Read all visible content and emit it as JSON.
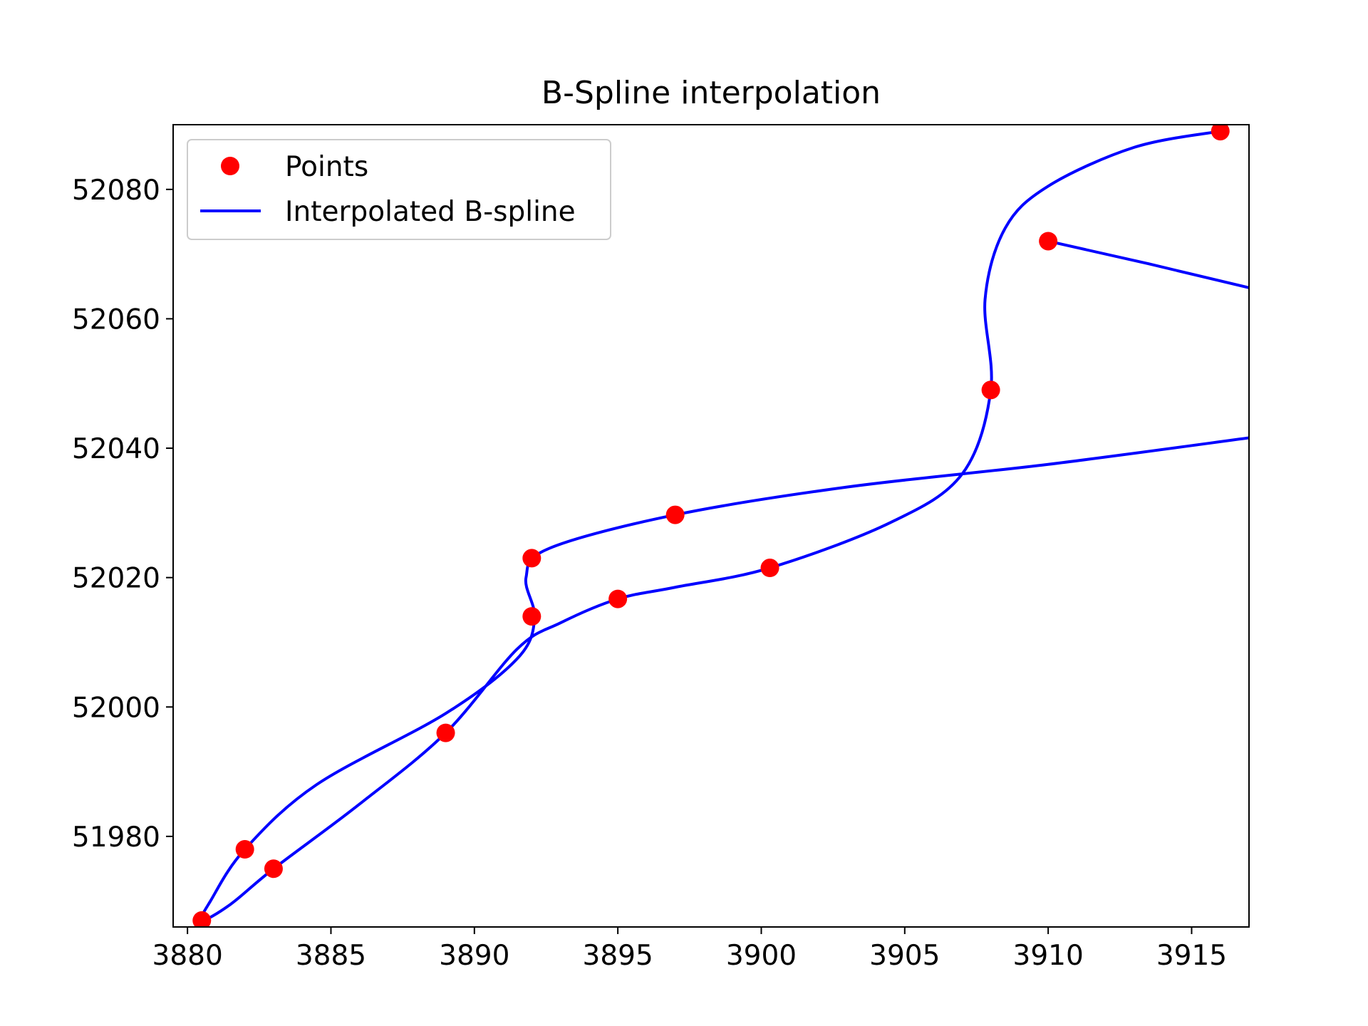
{
  "chart_data": {
    "type": "line",
    "title": "B-Spline interpolation",
    "xlabel": "",
    "ylabel": "",
    "xlim": [
      3879.5,
      3917
    ],
    "ylim": [
      51966,
      52090
    ],
    "xticks": [
      3880,
      3885,
      3890,
      3895,
      3900,
      3905,
      3910,
      3915
    ],
    "yticks": [
      51980,
      52000,
      52020,
      52040,
      52060,
      52080
    ],
    "grid": false,
    "legend_position": "upper left",
    "colors": {
      "points": "#ff0000",
      "spline": "#0000ff"
    },
    "series": [
      {
        "name": "Points",
        "kind": "scatter",
        "points": [
          {
            "x": 3880.5,
            "y": 51967
          },
          {
            "x": 3882,
            "y": 51978
          },
          {
            "x": 3883,
            "y": 51975
          },
          {
            "x": 3889,
            "y": 51996
          },
          {
            "x": 3892,
            "y": 52014
          },
          {
            "x": 3892,
            "y": 52023
          },
          {
            "x": 3895,
            "y": 52016.7
          },
          {
            "x": 3897,
            "y": 52029.7
          },
          {
            "x": 3900.3,
            "y": 52021.5
          },
          {
            "x": 3908,
            "y": 52049
          },
          {
            "x": 3910,
            "y": 52072
          },
          {
            "x": 3916,
            "y": 52089
          }
        ]
      },
      {
        "name": "Interpolated B-spline",
        "kind": "line",
        "points": [
          {
            "x": 3910,
            "y": 52072
          },
          {
            "x": 3913.5,
            "y": 52068.5
          },
          {
            "x": 3917,
            "y": 52064.8
          }
        ]
      },
      {
        "kind": "line",
        "points": [
          {
            "x": 3916,
            "y": 52089
          },
          {
            "x": 3913,
            "y": 52086.5
          },
          {
            "x": 3910,
            "y": 52080.5
          },
          {
            "x": 3908.5,
            "y": 52074
          },
          {
            "x": 3907.8,
            "y": 52063
          },
          {
            "x": 3908,
            "y": 52049
          },
          {
            "x": 3907,
            "y": 52036
          },
          {
            "x": 3904.5,
            "y": 52028.5
          },
          {
            "x": 3900.3,
            "y": 52021.5
          },
          {
            "x": 3897,
            "y": 52018.5
          },
          {
            "x": 3895,
            "y": 52016.7
          },
          {
            "x": 3893,
            "y": 52013
          },
          {
            "x": 3891.5,
            "y": 52009
          },
          {
            "x": 3889,
            "y": 51996
          },
          {
            "x": 3886,
            "y": 51985
          },
          {
            "x": 3883,
            "y": 51975
          },
          {
            "x": 3881.5,
            "y": 51969.5
          },
          {
            "x": 3880.5,
            "y": 51967
          },
          {
            "x": 3880.8,
            "y": 51970
          },
          {
            "x": 3882,
            "y": 51978
          },
          {
            "x": 3884.5,
            "y": 51988
          },
          {
            "x": 3889,
            "y": 51999
          },
          {
            "x": 3891.5,
            "y": 52007.5
          },
          {
            "x": 3892.1,
            "y": 52013.7
          },
          {
            "x": 3891.8,
            "y": 52020
          },
          {
            "x": 3892.6,
            "y": 52024.5
          },
          {
            "x": 3897,
            "y": 52029.7
          },
          {
            "x": 3903,
            "y": 52034
          },
          {
            "x": 3910,
            "y": 52037.5
          },
          {
            "x": 3917,
            "y": 52041.6
          }
        ]
      }
    ]
  }
}
